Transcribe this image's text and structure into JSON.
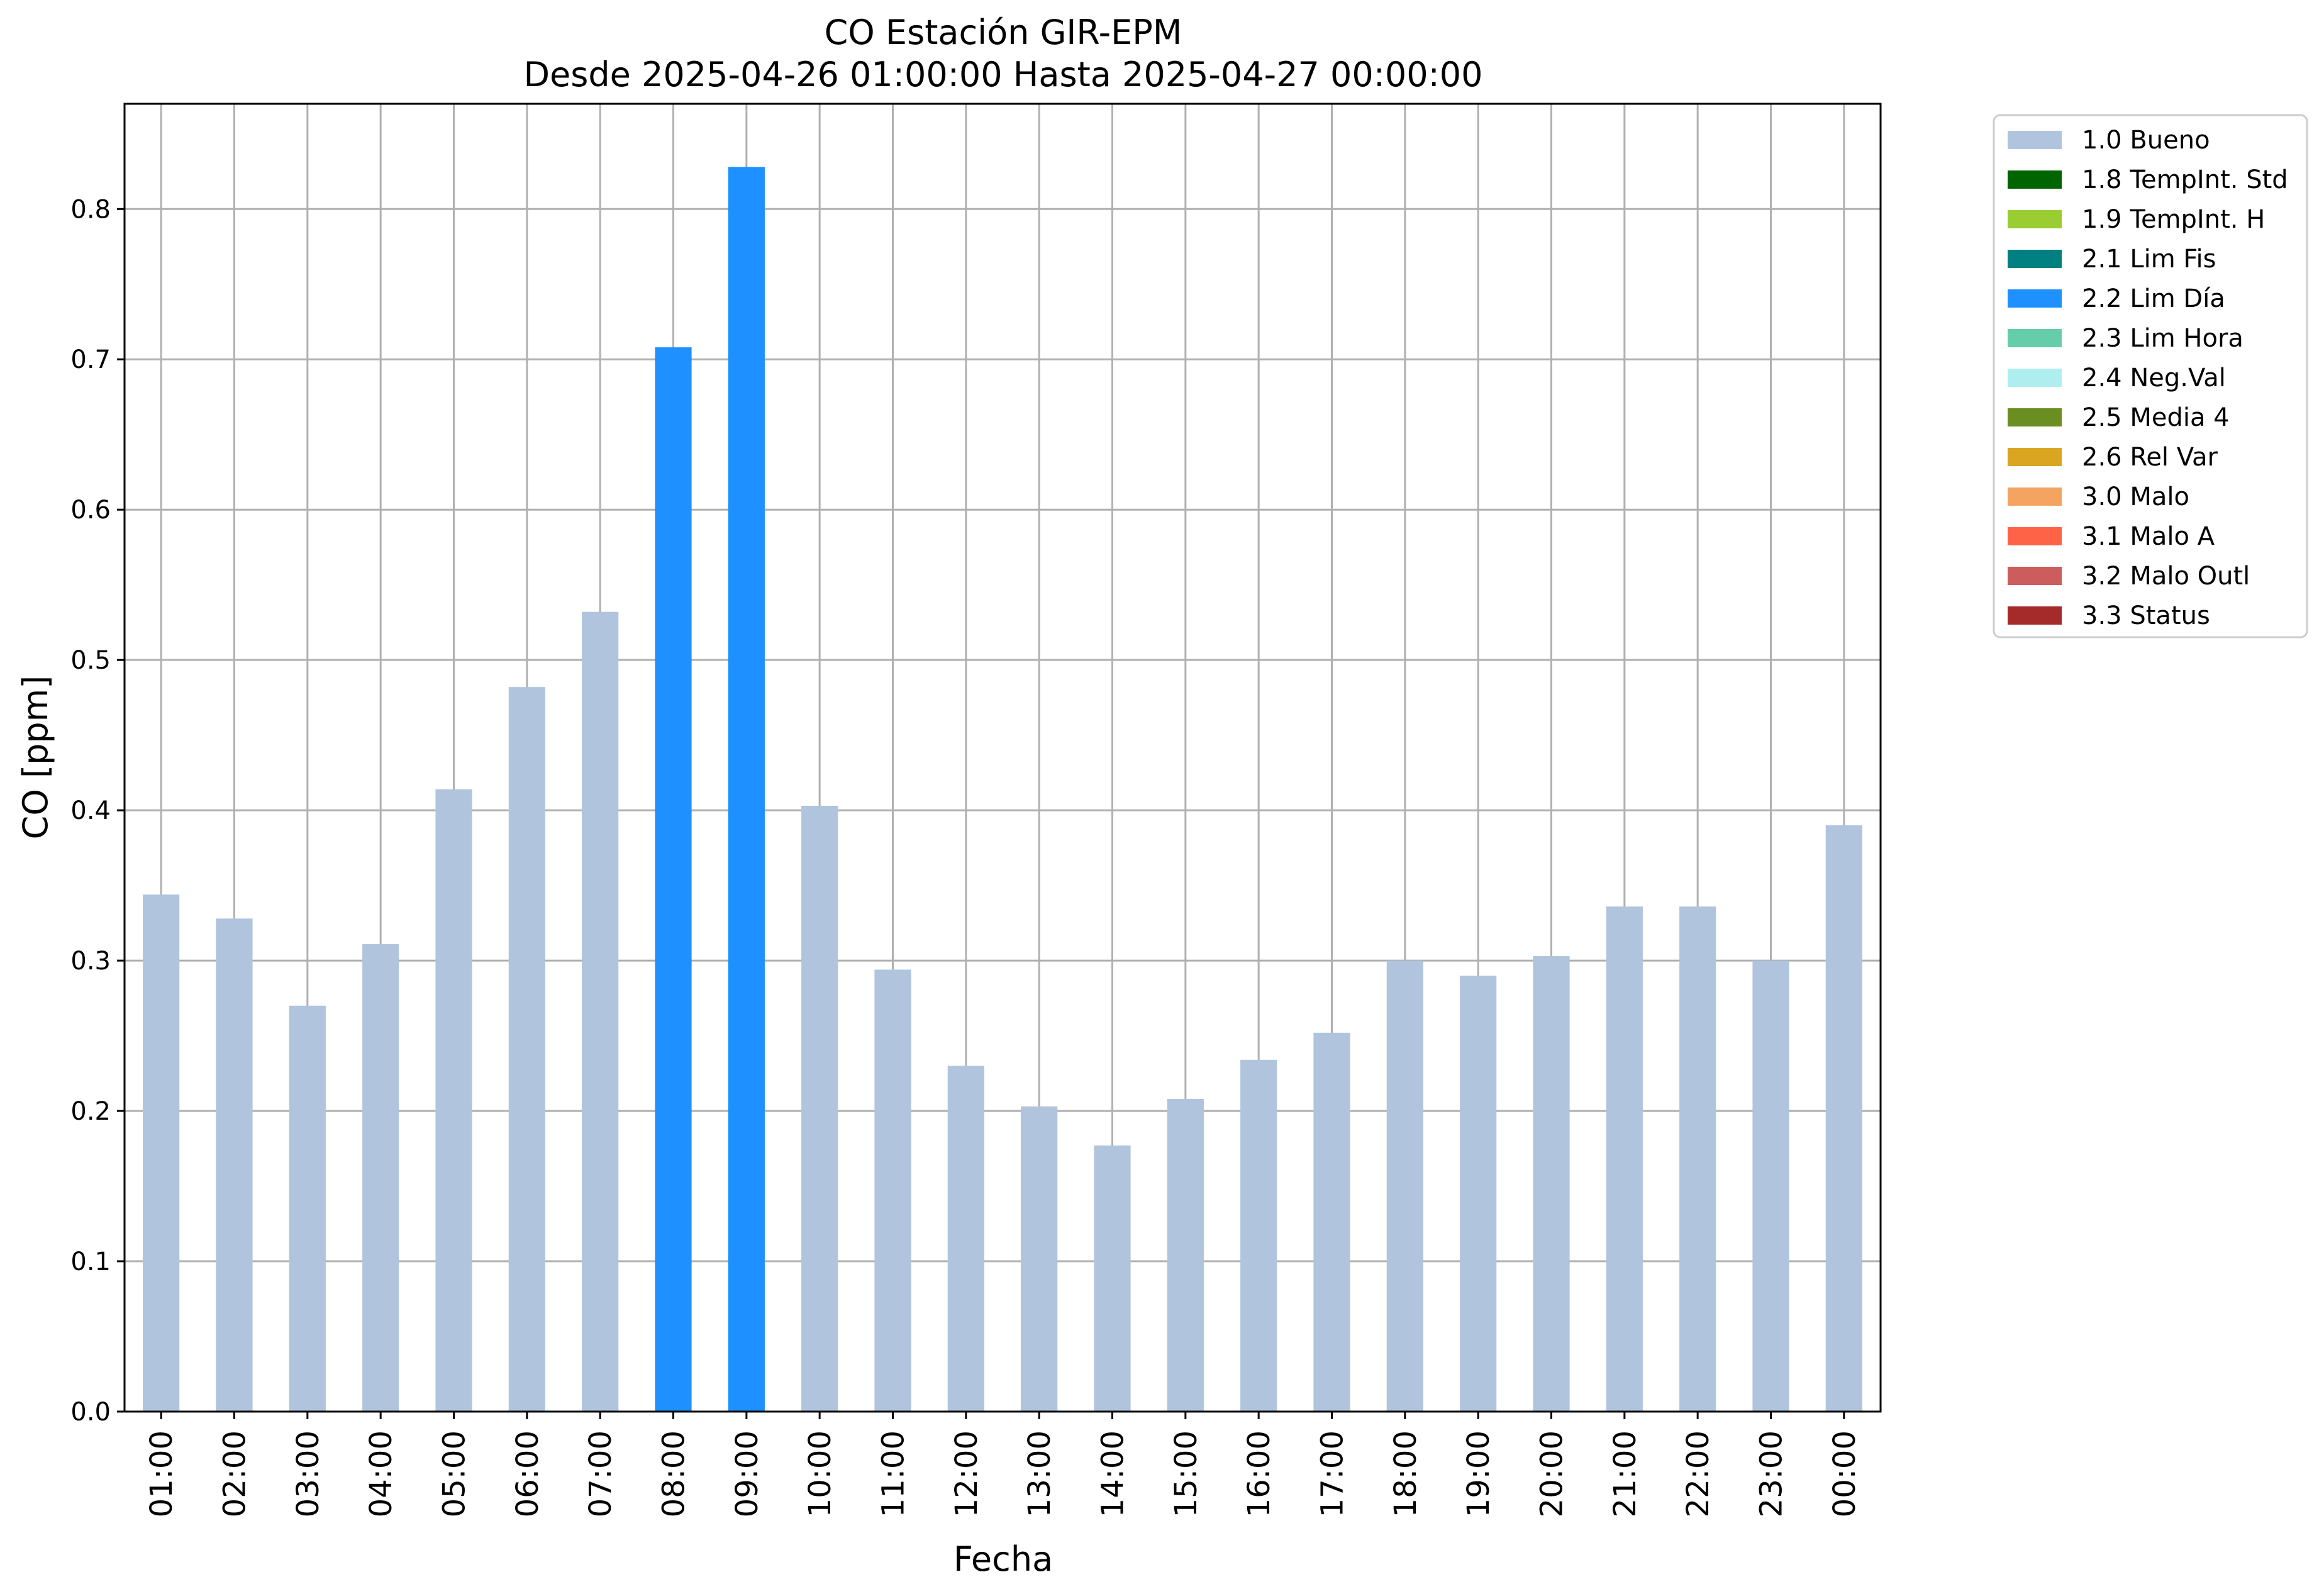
{
  "chart_data": {
    "type": "bar",
    "title": "CO Estación GIR-EPM",
    "subtitle": "Desde 2025-04-26 01:00:00 Hasta 2025-04-27 00:00:00",
    "xlabel": "Fecha",
    "ylabel": "CO [ppm]",
    "ylim": [
      0,
      0.87
    ],
    "yticks": [
      "0.0",
      "0.1",
      "0.2",
      "0.3",
      "0.4",
      "0.5",
      "0.6",
      "0.7",
      "0.8"
    ],
    "grid": true,
    "legend_position": "outside-top-right",
    "categories": [
      "01:00",
      "02:00",
      "03:00",
      "04:00",
      "05:00",
      "06:00",
      "07:00",
      "08:00",
      "09:00",
      "10:00",
      "11:00",
      "12:00",
      "13:00",
      "14:00",
      "15:00",
      "16:00",
      "17:00",
      "18:00",
      "19:00",
      "20:00",
      "21:00",
      "22:00",
      "23:00",
      "00:00"
    ],
    "values": [
      0.344,
      0.328,
      0.27,
      0.311,
      0.414,
      0.482,
      0.532,
      0.708,
      0.828,
      0.403,
      0.294,
      0.23,
      0.203,
      0.177,
      0.208,
      0.234,
      0.252,
      0.3,
      0.29,
      0.303,
      0.336,
      0.336,
      0.3,
      0.39
    ],
    "flags": [
      "1.0 Bueno",
      "1.0 Bueno",
      "1.0 Bueno",
      "1.0 Bueno",
      "1.0 Bueno",
      "1.0 Bueno",
      "1.0 Bueno",
      "2.2 Lim Día",
      "2.2 Lim Día",
      "1.0 Bueno",
      "1.0 Bueno",
      "1.0 Bueno",
      "1.0 Bueno",
      "1.0 Bueno",
      "1.0 Bueno",
      "1.0 Bueno",
      "1.0 Bueno",
      "1.0 Bueno",
      "1.0 Bueno",
      "1.0 Bueno",
      "1.0 Bueno",
      "1.0 Bueno",
      "1.0 Bueno",
      "1.0 Bueno"
    ],
    "legend": [
      {
        "label": "1.0 Bueno",
        "color": "#b0c4de"
      },
      {
        "label": "1.8 TempInt. Std",
        "color": "#006400"
      },
      {
        "label": "1.9 TempInt. H",
        "color": "#9acd32"
      },
      {
        "label": "2.1 Lim Fis",
        "color": "#008080"
      },
      {
        "label": "2.2 Lim Día",
        "color": "#1e90ff"
      },
      {
        "label": "2.3 Lim Hora",
        "color": "#66cdaa"
      },
      {
        "label": "2.4 Neg.Val",
        "color": "#afeeee"
      },
      {
        "label": "2.5 Media 4",
        "color": "#6b8e23"
      },
      {
        "label": "2.6 Rel Var",
        "color": "#daa520"
      },
      {
        "label": "3.0 Malo",
        "color": "#f4a460"
      },
      {
        "label": "3.1 Malo A",
        "color": "#ff6347"
      },
      {
        "label": "3.2 Malo Outl",
        "color": "#cd5c5c"
      },
      {
        "label": "3.3 Status",
        "color": "#a52a2a"
      }
    ]
  }
}
